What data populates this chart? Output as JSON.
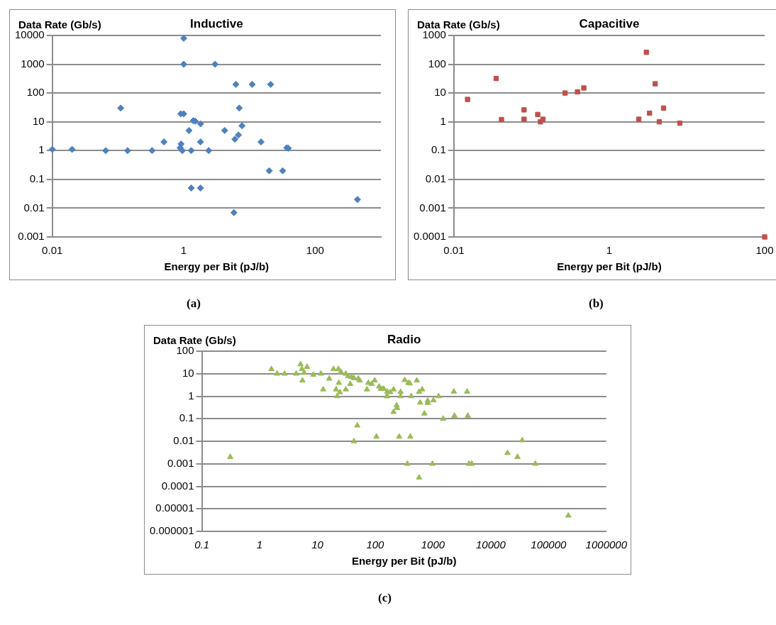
{
  "chart_data": [
    {
      "type": "scatter",
      "title": "Inductive",
      "xlabel": "Energy per Bit (pJ/b)",
      "ylabel": "Data Rate (Gb/s)",
      "color": "#4f81bd",
      "marker": "diamond",
      "log": "xy",
      "grid": "y",
      "xlim": [
        0.01,
        1000
      ],
      "ylim": [
        0.001,
        10000
      ],
      "xticks": [
        0.01,
        1,
        100
      ],
      "yticks": [
        0.001,
        0.01,
        0.1,
        1,
        10,
        100,
        1000,
        10000
      ],
      "annotations": [
        "(a)"
      ],
      "x": [
        0.01,
        0.02,
        0.065,
        0.14,
        0.11,
        0.33,
        0.5,
        0.9,
        1,
        1,
        1,
        0.91,
        0.88,
        0.95,
        1.2,
        1.3,
        1.3,
        1.4,
        1.5,
        1.8,
        1.8,
        1.8,
        2.4,
        3,
        4.2,
        6.2,
        6,
        6.8,
        7,
        7.7,
        5.8,
        11,
        15,
        20,
        21,
        32,
        37,
        39,
        440
      ],
      "values": [
        1.1,
        1.1,
        1,
        1,
        30,
        1,
        2,
        19,
        19,
        8000,
        1000,
        1.7,
        1.25,
        1,
        5,
        1,
        0.05,
        11,
        10.5,
        8.5,
        2,
        0.05,
        1,
        1000,
        5,
        200,
        2.5,
        3.5,
        30,
        7.3,
        0.007,
        200,
        2,
        0.2,
        200,
        0.2,
        1.25,
        1.2,
        0.02
      ]
    },
    {
      "type": "scatter",
      "title": "Capacitive",
      "xlabel": "Energy per Bit (pJ/b)",
      "ylabel": "Data Rate (Gb/s)",
      "color": "#c0504d",
      "marker": "square",
      "log": "xy",
      "grid": "y",
      "xlim": [
        0.01,
        100
      ],
      "ylim": [
        0.0001,
        1000
      ],
      "xticks": [
        0.01,
        1,
        100
      ],
      "yticks": [
        0.0001,
        0.001,
        0.01,
        0.1,
        1,
        10,
        100,
        1000
      ],
      "annotations": [
        "(b)"
      ],
      "x": [
        0.015,
        0.035,
        0.041,
        0.08,
        0.08,
        0.12,
        0.13,
        0.14,
        0.27,
        0.39,
        0.47,
        2.4,
        3,
        3.3,
        3.9,
        4.4,
        5,
        8.1,
        100
      ],
      "values": [
        6,
        32,
        1.2,
        2.6,
        1.23,
        1.8,
        1,
        1.23,
        10,
        11,
        15,
        1.23,
        260,
        2,
        21,
        1,
        3,
        0.9,
        0.0001
      ]
    },
    {
      "type": "scatter",
      "title": "Radio",
      "xlabel": "Energy per Bit (pJ/b)",
      "ylabel": "Data Rate (Gb/s)",
      "color": "#9bbb59",
      "marker": "triangle",
      "log": "xy",
      "grid": "y",
      "xlim": [
        0.1,
        1000000
      ],
      "ylim": [
        1e-06,
        100
      ],
      "xticks": [
        0.1,
        1,
        10,
        100,
        1000,
        10000,
        100000,
        1000000
      ],
      "yticks": [
        {
          "value": 1e-06,
          "label": "0.000001"
        },
        {
          "value": 1e-05,
          "label": "0.00001"
        },
        0.0001,
        0.001,
        0.01,
        0.1,
        1,
        10,
        100
      ],
      "annotations": [
        "(c)"
      ],
      "x": [
        0.31,
        1.6,
        2,
        2.7,
        4.3,
        5.1,
        5.4,
        5.5,
        5.9,
        6.6,
        8.5,
        11.5,
        12.6,
        16,
        19,
        21,
        23,
        23.5,
        22,
        24.5,
        25.5,
        31,
        31,
        34,
        37,
        39,
        43,
        51,
        54,
        49,
        43,
        72,
        76,
        87,
        98,
        105,
        117,
        135,
        158,
        125,
        141,
        162,
        162,
        182,
        208,
        208,
        235,
        240,
        260,
        275,
        275,
        324,
        360,
        373,
        398,
        405,
        420,
        525,
        575,
        575,
        600,
        650,
        710,
        810,
        810,
        980,
        1020,
        1250,
        1500,
        2300,
        2350,
        3900,
        4000,
        4200,
        4700,
        19500,
        29000,
        35000,
        59000,
        220000
      ],
      "values": [
        0.002,
        16,
        10,
        10,
        10,
        26,
        16,
        5,
        11,
        20,
        9,
        10,
        2,
        6,
        16,
        2,
        16,
        3.9,
        1,
        1.5,
        12,
        2,
        10,
        7.7,
        3.5,
        7.2,
        6.3,
        6,
        5,
        0.05,
        0.01,
        2,
        3.9,
        3.5,
        5,
        0.016,
        2.7,
        2.1,
        1,
        2.1,
        2.1,
        1.6,
        1,
        1.5,
        2,
        0.2,
        0.39,
        0.3,
        0.016,
        1.55,
        1,
        5.2,
        0.001,
        3.9,
        3.7,
        0.016,
        1,
        5,
        1.55,
        0.000245,
        0.52,
        2,
        0.17,
        0.63,
        0.5,
        0.001,
        0.66,
        1,
        0.1,
        1.6,
        0.135,
        1.6,
        0.135,
        0.001,
        0.001,
        0.003,
        0.002,
        0.011,
        0.001,
        5e-06
      ]
    }
  ]
}
